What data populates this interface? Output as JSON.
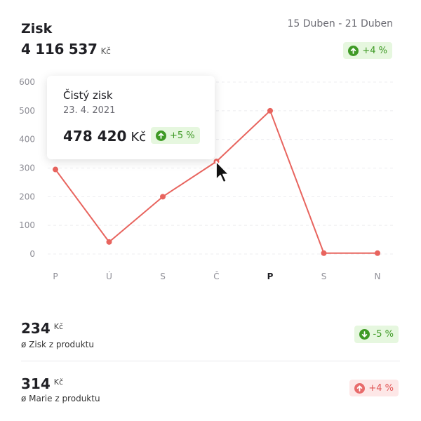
{
  "header": {
    "title": "Zisk",
    "total_value": "4 116 537",
    "total_unit": "Kč",
    "date_range": "15 Duben - 21 Duben",
    "change": "+4 %"
  },
  "chart_data": {
    "type": "line",
    "categories": [
      "P",
      "Ú",
      "S",
      "Č",
      "P",
      "S",
      "N"
    ],
    "values": [
      295,
      42,
      200,
      323,
      500,
      3,
      3
    ],
    "ylim": [
      0,
      600
    ],
    "yticks": [
      "0",
      "100",
      "200",
      "300",
      "400",
      "500",
      "600"
    ],
    "active_category_index": 4,
    "grid": true,
    "line_color": "#e8645e"
  },
  "tooltip": {
    "title": "Čistý zisk",
    "date": "23. 4. 2021",
    "value": "478 420",
    "unit": "Kč",
    "change": "+5 %"
  },
  "stats": [
    {
      "value": "234",
      "unit": "Kč",
      "label": "ø Zisk z produktu",
      "change": "-5 %",
      "trend": "down",
      "color": "green"
    },
    {
      "value": "314",
      "unit": "Kč",
      "label": "ø Marie z produktu",
      "change": "+4 %",
      "trend": "up",
      "color": "red"
    }
  ]
}
